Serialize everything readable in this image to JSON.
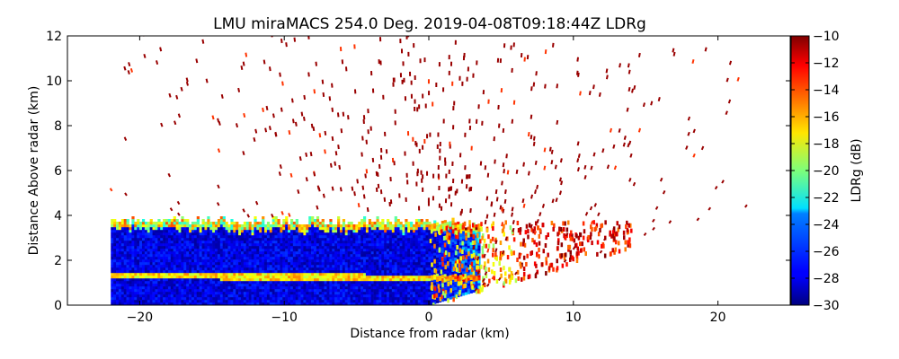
{
  "chart_data": {
    "type": "heatmap",
    "title": "LMU miraMACS 254.0 Deg. 2019-04-08T09:18:44Z  LDRg",
    "xlabel": "Distance from radar (km)",
    "ylabel": "Distance Above radar  (km)",
    "xlim": [
      -25,
      25
    ],
    "ylim": [
      0,
      12
    ],
    "xticks": [
      -20,
      -10,
      0,
      10,
      20
    ],
    "xtick_labels": [
      "−20",
      "−10",
      "0",
      "10",
      "20"
    ],
    "yticks": [
      0,
      2,
      4,
      6,
      8,
      10,
      12
    ],
    "ytick_labels": [
      "0",
      "2",
      "4",
      "6",
      "8",
      "10",
      "12"
    ],
    "colorbar": {
      "label": "LDRg (dB)",
      "range": [
        -30,
        -10
      ],
      "colormap": "jet",
      "ticks": [
        -10,
        -12,
        -14,
        -16,
        -18,
        -20,
        -22,
        -24,
        -26,
        -28,
        -30
      ],
      "tick_labels": [
        "−10",
        "−12",
        "−14",
        "−16",
        "−18",
        "−20",
        "−22",
        "−24",
        "−26",
        "−28",
        "−30"
      ]
    },
    "features": [
      {
        "name": "cloud-layer",
        "x_range_km": [
          -22,
          6
        ],
        "top_km": 3.8,
        "base_km": 0.0,
        "ldr_db": -28
      },
      {
        "name": "melting-layer-bright-band",
        "x_start_km": -22,
        "x_end_km": 3,
        "height_start_km": 1.0,
        "height_end_km": 1.0,
        "ldr_db": -17
      },
      {
        "name": "transition-zone",
        "x_range_km": [
          0,
          6
        ],
        "ldr_db": -16
      },
      {
        "name": "scattered-noise",
        "x_range_km": [
          -22,
          22
        ],
        "max_height_km": 12,
        "ldr_db": -10.5
      }
    ]
  },
  "colors": {
    "axis": "#000000",
    "background": "#ffffff"
  }
}
